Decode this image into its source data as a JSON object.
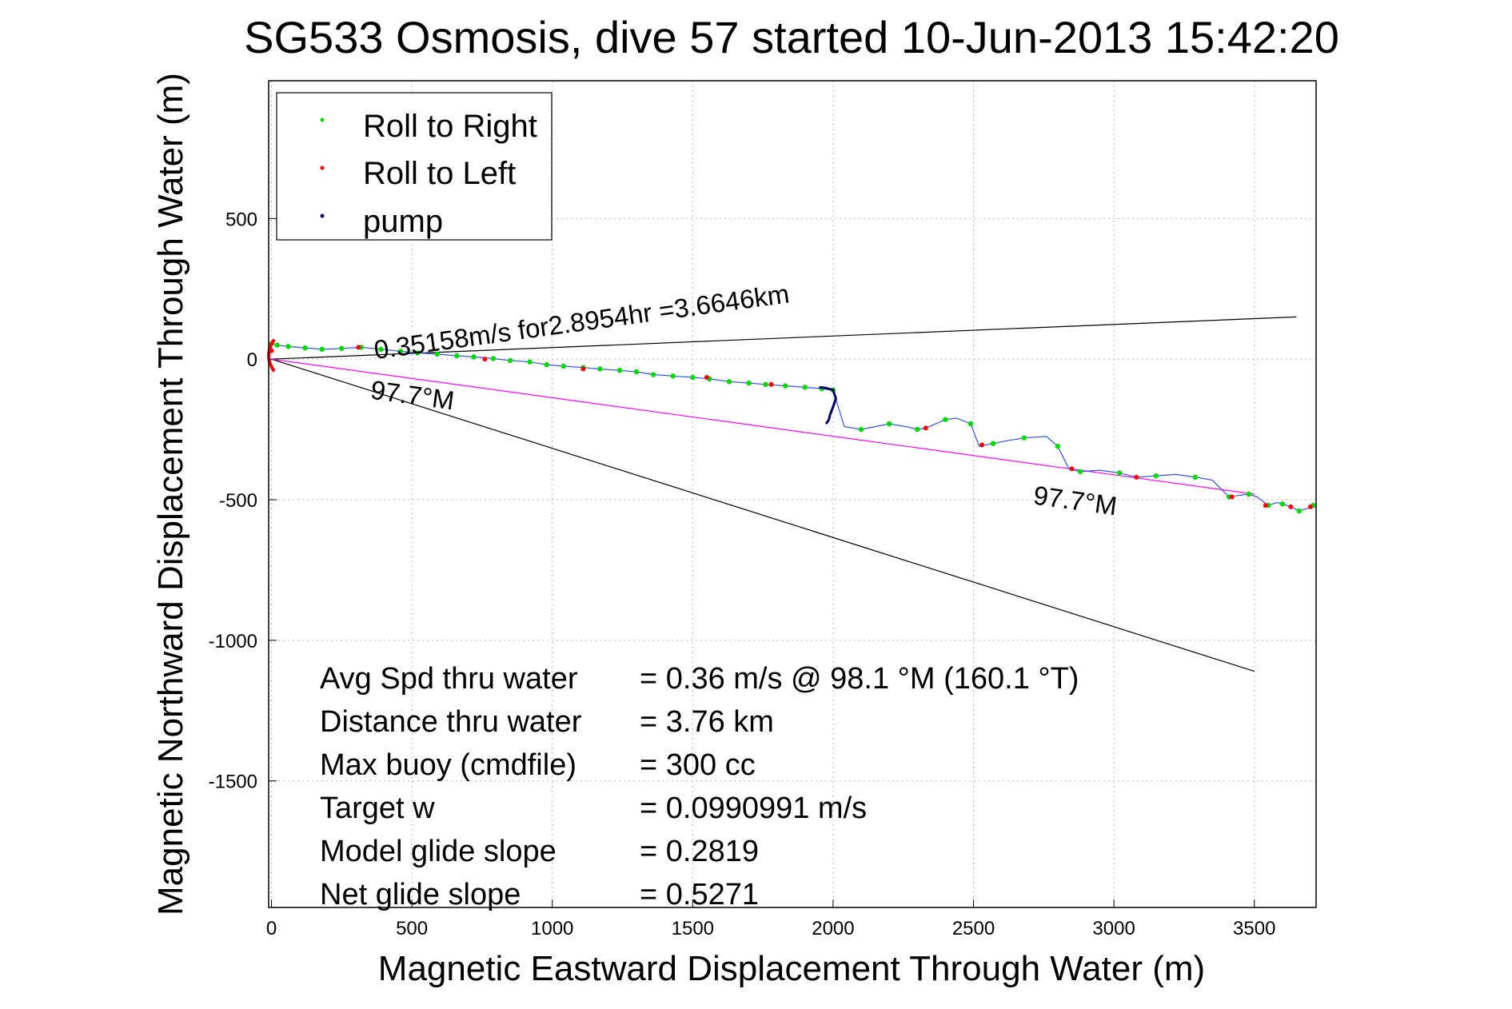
{
  "chart_data": {
    "type": "line",
    "title": "SG533 Osmosis, dive 57 started 10-Jun-2013 15:42:20",
    "xlabel": "Magnetic Eastward Displacement Through Water (m)",
    "ylabel": "Magnetic Northward Displacement Through Water (m)",
    "xlim": [
      -10,
      3720
    ],
    "ylim": [
      -1950,
      990
    ],
    "xticks": [
      0,
      500,
      1000,
      1500,
      2000,
      2500,
      3000,
      3500
    ],
    "yticks": [
      500,
      0,
      -500,
      -1000,
      -1500
    ],
    "grid": true,
    "legend": {
      "position": "top-left",
      "entries": [
        {
          "label": "Roll to Right",
          "color": "#00dd00"
        },
        {
          "label": "Roll to Left",
          "color": "#ff0000"
        },
        {
          "label": "pump",
          "color": "#000066"
        }
      ]
    },
    "colors": {
      "track": "#3050ff",
      "roll_right": "#00dd00",
      "roll_left": "#ff0000",
      "pump": "#000066",
      "fit": "#ff00ff",
      "wedge": "#000000",
      "start": "#ff0000"
    },
    "track": {
      "x": [
        0,
        20,
        60,
        120,
        180,
        250,
        320,
        390,
        460,
        520,
        590,
        660,
        720,
        790,
        850,
        920,
        980,
        1040,
        1110,
        1170,
        1240,
        1300,
        1360,
        1430,
        1500,
        1560,
        1630,
        1700,
        1760,
        1830,
        1900,
        1960,
        2000,
        2040,
        2100,
        2150,
        2200,
        2260,
        2300,
        2330,
        2400,
        2440,
        2490,
        2520,
        2570,
        2620,
        2680,
        2760,
        2800,
        2840,
        2880,
        2950,
        3020,
        3080,
        3150,
        3220,
        3290,
        3350,
        3410,
        3440,
        3480,
        3510,
        3550,
        3580,
        3600,
        3630,
        3660,
        3690,
        3710,
        3720
      ],
      "y": [
        55,
        50,
        45,
        40,
        35,
        38,
        42,
        35,
        28,
        22,
        18,
        12,
        8,
        2,
        -5,
        -10,
        -20,
        -25,
        -30,
        -35,
        -40,
        -45,
        -55,
        -60,
        -65,
        -70,
        -80,
        -85,
        -90,
        -95,
        -100,
        -105,
        -110,
        -240,
        -250,
        -240,
        -230,
        -240,
        -250,
        -245,
        -215,
        -210,
        -230,
        -310,
        -300,
        -290,
        -280,
        -275,
        -310,
        -390,
        -400,
        -395,
        -405,
        -420,
        -415,
        -410,
        -420,
        -430,
        -490,
        -485,
        -480,
        -490,
        -520,
        -510,
        -515,
        -525,
        -540,
        -530,
        -520,
        -525
      ]
    },
    "pump_segment": {
      "x": [
        1950,
        1975,
        2000,
        2010,
        2000,
        1990,
        1985,
        1975
      ],
      "y": [
        -100,
        -103,
        -110,
        -140,
        -170,
        -195,
        -215,
        -230
      ]
    },
    "roll_left_points": {
      "x": [
        0,
        310,
        760,
        1110,
        1550,
        1780,
        2330,
        2530,
        2850,
        3080,
        3420,
        3540,
        3630,
        3700
      ],
      "y": [
        30,
        42,
        0,
        -35,
        -65,
        -90,
        -245,
        -305,
        -390,
        -420,
        -490,
        -520,
        -525,
        -525
      ]
    },
    "fit_line": {
      "label": "0.35158m/s for2.8954hr =3.6646km",
      "x": [
        0,
        3500
      ],
      "y": [
        0,
        -480
      ]
    },
    "heading_lines": [
      {
        "x": [
          0,
          3650
        ],
        "y": [
          0,
          150
        ]
      },
      {
        "x": [
          0,
          3500
        ],
        "y": [
          0,
          -1110
        ]
      }
    ],
    "annotations": [
      {
        "text": "0.35158m/s for2.8954hr =3.6646km",
        "x": 370,
        "y": 0,
        "rotation": -7.8
      },
      {
        "text": "97.7°M",
        "x": 350,
        "y": -140,
        "rotation": 7.8
      },
      {
        "text": "97.7°M",
        "x": 2710,
        "y": -515,
        "rotation": 7.8
      }
    ],
    "stats": [
      {
        "label": "Avg Spd thru water",
        "value": "=  0.36 m/s @  98.1 °M (160.1 °T)"
      },
      {
        "label": "Distance thru water",
        "value": "=  3.76 km"
      },
      {
        "label": "Max buoy (cmdfile)",
        "value": "= 300 cc"
      },
      {
        "label": "Target w",
        "value": "= 0.0990991 m/s"
      },
      {
        "label": "Model glide slope",
        "value": "= 0.2819"
      },
      {
        "label": "Net glide slope",
        "value": "= 0.5271"
      }
    ]
  }
}
